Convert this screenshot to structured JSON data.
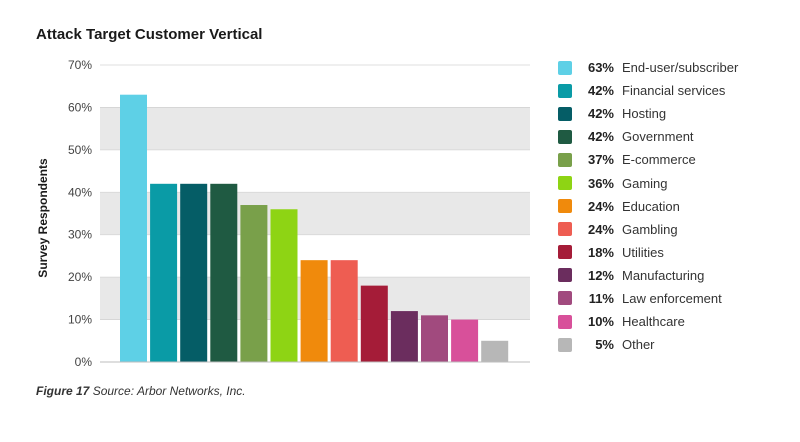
{
  "chart_data": {
    "type": "bar",
    "title": "Attack Target Customer Vertical",
    "ylabel": "Survey Respondents",
    "ylim": [
      0,
      70
    ],
    "yticks": [
      0,
      10,
      20,
      30,
      40,
      50,
      60,
      70
    ],
    "ytick_labels": [
      "0%",
      "10%",
      "20%",
      "30%",
      "40%",
      "50%",
      "60%",
      "70%"
    ],
    "grid": "alternating bands",
    "legend_position": "right",
    "categories": [
      "End-user/subscriber",
      "Financial services",
      "Hosting",
      "Government",
      "E-commerce",
      "Gaming",
      "Education",
      "Gambling",
      "Utilities",
      "Manufacturing",
      "Law enforcement",
      "Healthcare",
      "Other"
    ],
    "values": [
      63,
      42,
      42,
      42,
      37,
      36,
      24,
      24,
      18,
      12,
      11,
      10,
      5
    ],
    "value_labels": [
      "63%",
      "42%",
      "42%",
      "42%",
      "37%",
      "36%",
      "24%",
      "24%",
      "18%",
      "12%",
      "11%",
      "10%",
      "5%"
    ],
    "colors": [
      "#5ed0e6",
      "#0a9ba6",
      "#055d66",
      "#1f5a42",
      "#79a04a",
      "#8ed414",
      "#f08a0c",
      "#ee5d52",
      "#a51c38",
      "#6b2d5e",
      "#a14a7e",
      "#d8509a",
      "#b7b7b7"
    ]
  },
  "caption": {
    "figure": "Figure 17",
    "source": " Source: Arbor Networks, Inc."
  }
}
